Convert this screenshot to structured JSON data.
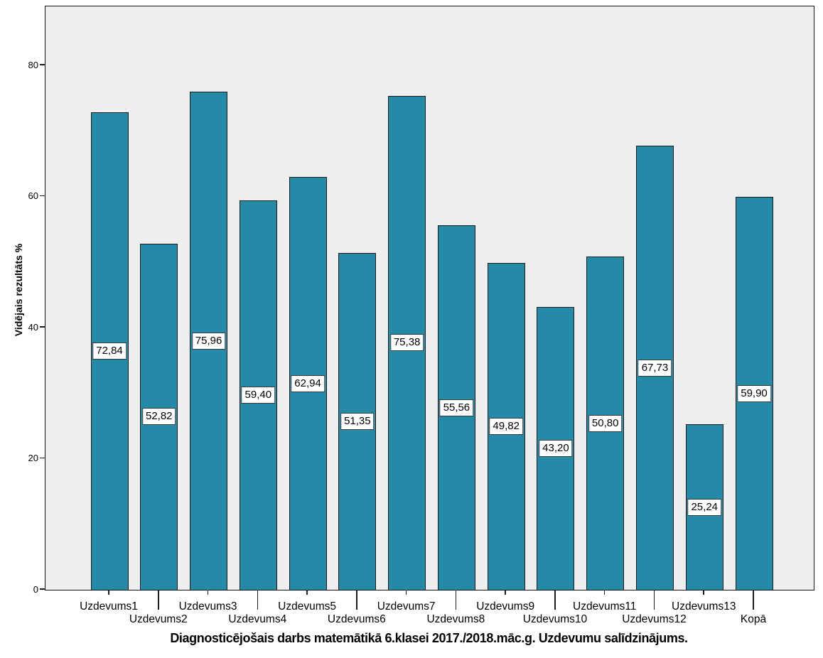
{
  "chart_data": {
    "type": "bar",
    "title": "Diagnosticējošais darbs matemātikā 6.klasei 2017./2018.māc.g. Uzdevumu salīdzinājums.",
    "ylabel": "Vidējais rezultāts %",
    "xlabel": "",
    "categories": [
      "Uzdevums1",
      "Uzdevums2",
      "Uzdevums3",
      "Uzdevums4",
      "Uzdevums5",
      "Uzdevums6",
      "Uzdevums7",
      "Uzdevums8",
      "Uzdevums9",
      "Uzdevums10",
      "Uzdevums11",
      "Uzdevums12",
      "Uzdevums13",
      "Kopā"
    ],
    "values": [
      72.84,
      52.82,
      75.96,
      59.4,
      62.94,
      51.35,
      75.38,
      55.56,
      49.82,
      43.2,
      50.8,
      67.73,
      25.24,
      59.9
    ],
    "value_labels": [
      "72,84",
      "52,82",
      "75,96",
      "59,40",
      "62,94",
      "51,35",
      "75,38",
      "55,56",
      "49,82",
      "43,20",
      "50,80",
      "67,73",
      "25,24",
      "59,90"
    ],
    "yticks": [
      0,
      20,
      40,
      60,
      80
    ],
    "ylim": [
      0,
      89
    ],
    "grid": "off",
    "legend": "none",
    "label_rows": "staggered",
    "colors": {
      "bar_fill": "#2589a8",
      "bar_border": "#1c1c1c",
      "plot_background": "#efefef",
      "page_background": "#ffffff",
      "text": "#000000",
      "value_box_background": "#ffffff",
      "value_box_border": "#3a3a3a"
    }
  }
}
